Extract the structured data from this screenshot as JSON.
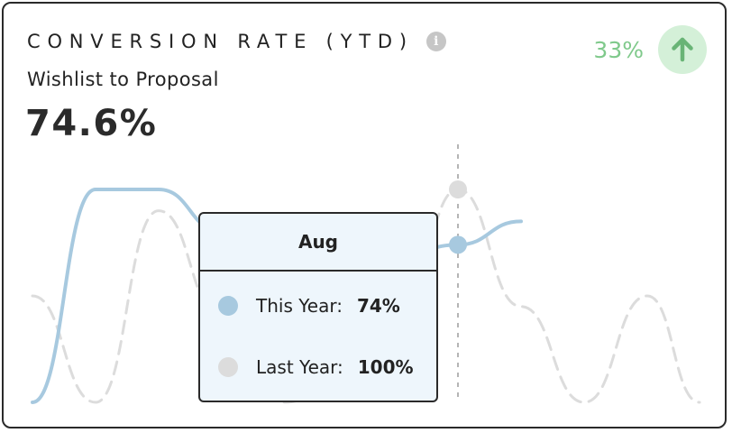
{
  "card": {
    "title": "CONVERSION RATE (YTD)",
    "info_icon": "info-icon",
    "subtitle": "Wishlist to Proposal",
    "value": "74.6%",
    "change": {
      "percent": "33%",
      "direction_icon": "arrow-up-icon",
      "color": "#7fc98b",
      "bg_color": "#d4f0d8"
    }
  },
  "chart_data": {
    "type": "line",
    "series": [
      {
        "name": "This Year",
        "color": "#a7c9df",
        "style": "solid",
        "values": [
          0,
          100,
          100,
          80,
          60,
          70,
          74,
          85
        ]
      },
      {
        "name": "Last Year",
        "color": "#dcdcdc",
        "style": "dashed",
        "values": [
          50,
          0,
          90,
          40,
          0,
          50,
          100,
          45,
          0,
          50,
          0
        ]
      }
    ],
    "ylim": [
      0,
      100
    ],
    "grid": false,
    "legend": "none",
    "hover_index_label": "Aug"
  },
  "tooltip": {
    "title": "Aug",
    "rows": [
      {
        "label": "This Year:",
        "value": "74%",
        "color": "#a7c9df"
      },
      {
        "label": "Last Year:",
        "value": "100%",
        "color": "#dcdcdc"
      }
    ]
  }
}
